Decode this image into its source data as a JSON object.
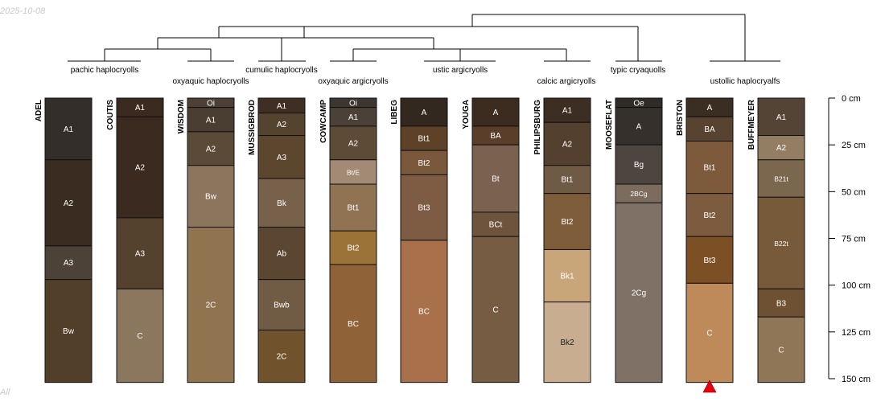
{
  "date_stamp": "2025-10-08",
  "footer_text": "All",
  "depth_axis": {
    "max": 150,
    "ticks": [
      {
        "depth": 0,
        "label": "0 cm"
      },
      {
        "depth": 25,
        "label": "25 cm"
      },
      {
        "depth": 50,
        "label": "50 cm"
      },
      {
        "depth": 75,
        "label": "75 cm"
      },
      {
        "depth": 100,
        "label": "100 cm"
      },
      {
        "depth": 125,
        "label": "125 cm"
      },
      {
        "depth": 150,
        "label": "150 cm"
      }
    ]
  },
  "groups": [
    {
      "label": "pachic haplocryolls",
      "members": [
        "ADEL",
        "COUTIS"
      ]
    },
    {
      "label": "oxyaquic haplocryolls",
      "members": [
        "WISDOM"
      ]
    },
    {
      "label": "cumulic haplocryolls",
      "members": [
        "MUSSIGBROD"
      ]
    },
    {
      "label": "oxyaquic argicryolls",
      "members": [
        "COWCAMP"
      ]
    },
    {
      "label": "ustic argicryolls",
      "members": [
        "LIBEG",
        "YOUGA"
      ]
    },
    {
      "label": "calcic argicryolls",
      "members": [
        "PHILIPSBURG"
      ]
    },
    {
      "label": "typic cryaquolls",
      "members": [
        "MOOSEFLAT"
      ]
    },
    {
      "label": "ustollic haplocryalfs",
      "members": [
        "BRISTON",
        "BUFFMEYER"
      ]
    }
  ],
  "profiles": [
    {
      "name": "ADEL",
      "horizons": [
        {
          "name": "A1",
          "top": 0,
          "bottom": 33,
          "color": "#342e2a"
        },
        {
          "name": "A2",
          "top": 33,
          "bottom": 79,
          "color": "#3a2c20"
        },
        {
          "name": "A3",
          "top": 79,
          "bottom": 97,
          "color": "#4d4237"
        },
        {
          "name": "Bw",
          "top": 97,
          "bottom": 152,
          "color": "#523f2a"
        }
      ]
    },
    {
      "name": "COUTIS",
      "horizons": [
        {
          "name": "A1",
          "top": 0,
          "bottom": 10,
          "color": "#3a2a20"
        },
        {
          "name": "A2",
          "top": 10,
          "bottom": 64,
          "color": "#3a2a20"
        },
        {
          "name": "A3",
          "top": 64,
          "bottom": 102,
          "color": "#54422f"
        },
        {
          "name": "C",
          "top": 102,
          "bottom": 152,
          "color": "#8a775e"
        }
      ]
    },
    {
      "name": "WISDOM",
      "horizons": [
        {
          "name": "Oi",
          "top": 0,
          "bottom": 5,
          "color": "#4c4036"
        },
        {
          "name": "A1",
          "top": 5,
          "bottom": 18,
          "color": "#4a3e33"
        },
        {
          "name": "A2",
          "top": 18,
          "bottom": 36,
          "color": "#5c4a38"
        },
        {
          "name": "Bw",
          "top": 36,
          "bottom": 69,
          "color": "#8b765d"
        },
        {
          "name": "2C",
          "top": 69,
          "bottom": 152,
          "color": "#8f744f"
        }
      ]
    },
    {
      "name": "MUSSIGBROD",
      "horizons": [
        {
          "name": "A1",
          "top": 0,
          "bottom": 8,
          "color": "#3f2f22"
        },
        {
          "name": "A2",
          "top": 8,
          "bottom": 20,
          "color": "#53432f"
        },
        {
          "name": "A3",
          "top": 20,
          "bottom": 43,
          "color": "#5c472e"
        },
        {
          "name": "Bk",
          "top": 43,
          "bottom": 69,
          "color": "#77614b"
        },
        {
          "name": "Ab",
          "top": 69,
          "bottom": 97,
          "color": "#5a4631"
        },
        {
          "name": "Bwb",
          "top": 97,
          "bottom": 124,
          "color": "#705c45"
        },
        {
          "name": "2C",
          "top": 124,
          "bottom": 152,
          "color": "#70532d"
        }
      ]
    },
    {
      "name": "COWCAMP",
      "horizons": [
        {
          "name": "Oi",
          "top": 0,
          "bottom": 5,
          "color": "#3d3530"
        },
        {
          "name": "A1",
          "top": 5,
          "bottom": 15,
          "color": "#4c4137"
        },
        {
          "name": "A2",
          "top": 15,
          "bottom": 33,
          "color": "#5d4a37"
        },
        {
          "name": "Bt/E",
          "top": 33,
          "bottom": 46,
          "color": "#a28a74"
        },
        {
          "name": "Bt1",
          "top": 46,
          "bottom": 71,
          "color": "#8f7352"
        },
        {
          "name": "Bt2",
          "top": 71,
          "bottom": 89,
          "color": "#9b7237"
        },
        {
          "name": "BC",
          "top": 89,
          "bottom": 152,
          "color": "#8f6237"
        }
      ]
    },
    {
      "name": "LIBEG",
      "horizons": [
        {
          "name": "A",
          "top": 0,
          "bottom": 15,
          "color": "#32281f"
        },
        {
          "name": "Bt1",
          "top": 15,
          "bottom": 28,
          "color": "#5e4227"
        },
        {
          "name": "Bt2",
          "top": 28,
          "bottom": 41,
          "color": "#7a583c"
        },
        {
          "name": "Bt3",
          "top": 41,
          "bottom": 76,
          "color": "#7e5b43"
        },
        {
          "name": "BC",
          "top": 76,
          "bottom": 152,
          "color": "#a8704b"
        }
      ]
    },
    {
      "name": "YOUGA",
      "horizons": [
        {
          "name": "A",
          "top": 0,
          "bottom": 15,
          "color": "#3b2c1f"
        },
        {
          "name": "BA",
          "top": 15,
          "bottom": 25,
          "color": "#5a3e2a"
        },
        {
          "name": "Bt",
          "top": 25,
          "bottom": 61,
          "color": "#7a6150"
        },
        {
          "name": "BCt",
          "top": 61,
          "bottom": 74,
          "color": "#6e533d"
        },
        {
          "name": "C",
          "top": 74,
          "bottom": 152,
          "color": "#755c42"
        }
      ]
    },
    {
      "name": "PHILIPSBURG",
      "horizons": [
        {
          "name": "A1",
          "top": 0,
          "bottom": 13,
          "color": "#3d2e24"
        },
        {
          "name": "A2",
          "top": 13,
          "bottom": 36,
          "color": "#54402e"
        },
        {
          "name": "Bt1",
          "top": 36,
          "bottom": 51,
          "color": "#6e5a45"
        },
        {
          "name": "Bt2",
          "top": 51,
          "bottom": 81,
          "color": "#7e5d3a"
        },
        {
          "name": "Bk1",
          "top": 81,
          "bottom": 109,
          "color": "#c9a679"
        },
        {
          "name": "Bk2",
          "top": 109,
          "bottom": 152,
          "color": "#c8ad90"
        }
      ]
    },
    {
      "name": "MOOSEFLAT",
      "horizons": [
        {
          "name": "Oe",
          "top": 0,
          "bottom": 5,
          "color": "#2f2c28"
        },
        {
          "name": "A",
          "top": 5,
          "bottom": 25,
          "color": "#35302b"
        },
        {
          "name": "Bg",
          "top": 25,
          "bottom": 46,
          "color": "#4d4640"
        },
        {
          "name": "2BCg",
          "top": 46,
          "bottom": 56,
          "color": "#7b6c5d"
        },
        {
          "name": "2Cg",
          "top": 56,
          "bottom": 152,
          "color": "#7f7166"
        }
      ]
    },
    {
      "name": "BRISTON",
      "horizons": [
        {
          "name": "A",
          "top": 0,
          "bottom": 10,
          "color": "#3a2d22"
        },
        {
          "name": "BA",
          "top": 10,
          "bottom": 23,
          "color": "#574330"
        },
        {
          "name": "Bt1",
          "top": 23,
          "bottom": 51,
          "color": "#7e5a3d"
        },
        {
          "name": "Bt2",
          "top": 51,
          "bottom": 74,
          "color": "#7c5b3e"
        },
        {
          "name": "Bt3",
          "top": 74,
          "bottom": 99,
          "color": "#7c4f24"
        },
        {
          "name": "C",
          "top": 99,
          "bottom": 152,
          "color": "#bf8a5a"
        }
      ]
    },
    {
      "name": "BUFFMEYER",
      "horizons": [
        {
          "name": "A1",
          "top": 0,
          "bottom": 20,
          "color": "#544436"
        },
        {
          "name": "A2",
          "top": 20,
          "bottom": 33,
          "color": "#937d63"
        },
        {
          "name": "B21t",
          "top": 33,
          "bottom": 53,
          "color": "#7b664e"
        },
        {
          "name": "B22t",
          "top": 53,
          "bottom": 102,
          "color": "#765a39"
        },
        {
          "name": "B3",
          "top": 102,
          "bottom": 117,
          "color": "#6e5132"
        },
        {
          "name": "C",
          "top": 117,
          "bottom": 152,
          "color": "#8f7656"
        }
      ]
    }
  ],
  "marker": {
    "profile": "BRISTON",
    "shape": "triangle",
    "color": "#e8000b"
  }
}
